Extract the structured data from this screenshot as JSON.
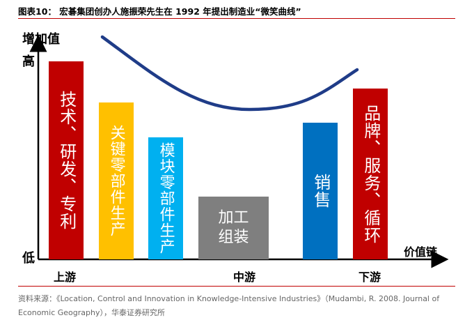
{
  "figure_title": "图表10：  宏碁集团创办人施振荣先生在 1992 年提出制造业“微笑曲线”",
  "y_axis": {
    "title": "增加值",
    "high": "高",
    "low": "低"
  },
  "x_axis": {
    "title": "价值链",
    "upstream": "上游",
    "midstream": "中游",
    "downstream": "下游"
  },
  "bars": [
    {
      "label": "技术、研发、专利",
      "color": "#c00000"
    },
    {
      "label": "关键零部件生产",
      "color": "#ffc000"
    },
    {
      "label": "模块零部件生产",
      "color": "#00b0f0"
    },
    {
      "label": "加工组装",
      "line1": "加工",
      "line2": "组装",
      "color": "#7f7f7f"
    },
    {
      "label": "销售",
      "color": "#0070c0"
    },
    {
      "label": "品牌、服务、循环",
      "color": "#c00000"
    }
  ],
  "curve_color": "#1f3c88",
  "source_prefix": "资料来源：",
  "source_text": "《Location, Control and Innovation in Knowledge-Intensive Industries》（Mudambi, R. 2008. Journal of Economic Geography），华泰证券研究所"
}
